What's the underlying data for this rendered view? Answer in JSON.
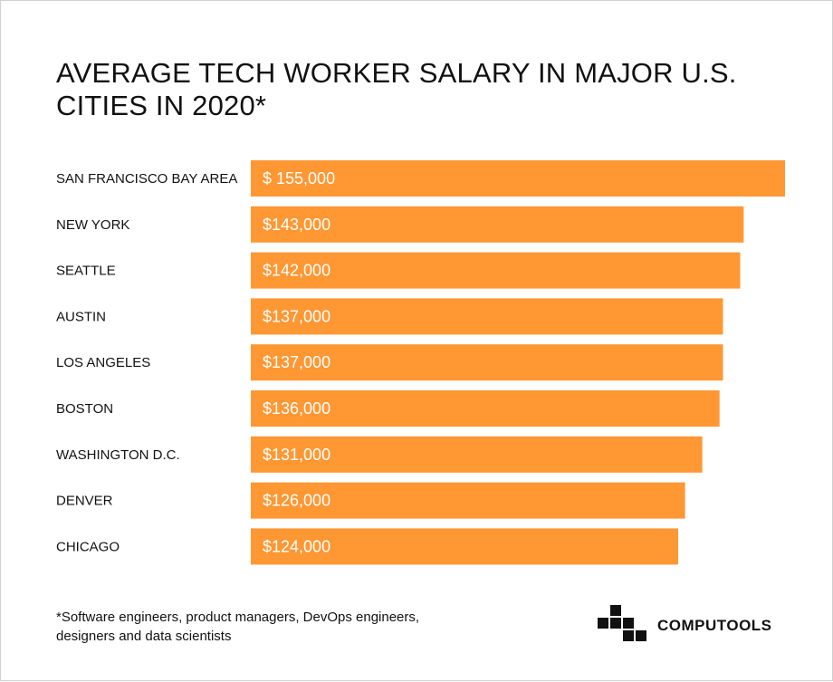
{
  "chart_data": {
    "type": "bar",
    "orientation": "horizontal",
    "title": "AVERAGE TECH WORKER SALARY IN MAJOR U.S. CITIES IN 2020*",
    "categories": [
      "SAN FRANCISCO BAY AREA",
      "NEW YORK",
      "SEATTLE",
      "AUSTIN",
      "LOS ANGELES",
      "BOSTON",
      "WASHINGTON D.C.",
      "DENVER",
      "CHICAGO"
    ],
    "values": [
      155000,
      143000,
      142000,
      137000,
      137000,
      136000,
      131000,
      126000,
      124000
    ],
    "value_labels": [
      "$ 155,000",
      "$143,000",
      "$142,000",
      "$137,000",
      "$137,000",
      "$136,000",
      "$131,000",
      "$126,000",
      "$124,000"
    ],
    "xlim": [
      0,
      155000
    ],
    "xlabel": "",
    "ylabel": "",
    "bar_color": "#ff9733",
    "grid": false
  },
  "footnote": "*Software engineers, product managers, DevOps engineers, designers and data scientists",
  "brand": {
    "name": "COMPUTOOLS",
    "icon": "computools-logo-icon"
  }
}
